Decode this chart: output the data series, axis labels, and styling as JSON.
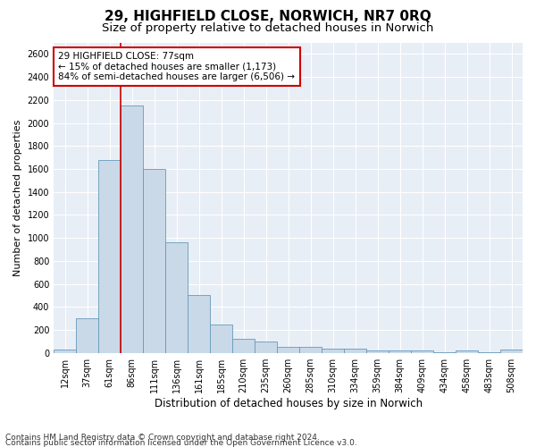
{
  "title1": "29, HIGHFIELD CLOSE, NORWICH, NR7 0RQ",
  "title2": "Size of property relative to detached houses in Norwich",
  "xlabel": "Distribution of detached houses by size in Norwich",
  "ylabel": "Number of detached properties",
  "categories": [
    "12sqm",
    "37sqm",
    "61sqm",
    "86sqm",
    "111sqm",
    "136sqm",
    "161sqm",
    "185sqm",
    "210sqm",
    "235sqm",
    "260sqm",
    "285sqm",
    "310sqm",
    "334sqm",
    "359sqm",
    "384sqm",
    "409sqm",
    "434sqm",
    "458sqm",
    "483sqm",
    "508sqm"
  ],
  "values": [
    25,
    300,
    1675,
    2150,
    1600,
    960,
    500,
    250,
    120,
    100,
    50,
    50,
    35,
    35,
    20,
    20,
    20,
    5,
    20,
    5,
    25
  ],
  "bar_color": "#c9d9e8",
  "bar_edgecolor": "#6699bb",
  "vline_color": "#cc0000",
  "vline_x_index": 2.5,
  "annotation_text": "29 HIGHFIELD CLOSE: 77sqm\n← 15% of detached houses are smaller (1,173)\n84% of semi-detached houses are larger (6,506) →",
  "annotation_box_color": "#ffffff",
  "annotation_box_edgecolor": "#cc0000",
  "ylim": [
    0,
    2700
  ],
  "yticks": [
    0,
    200,
    400,
    600,
    800,
    1000,
    1200,
    1400,
    1600,
    1800,
    2000,
    2200,
    2400,
    2600
  ],
  "footer1": "Contains HM Land Registry data © Crown copyright and database right 2024.",
  "footer2": "Contains public sector information licensed under the Open Government Licence v3.0.",
  "bg_color": "#ffffff",
  "plot_bg_color": "#e8eef5",
  "grid_color": "#ffffff",
  "title1_fontsize": 11,
  "title2_fontsize": 9.5,
  "xlabel_fontsize": 8.5,
  "ylabel_fontsize": 8,
  "tick_fontsize": 7,
  "annotation_fontsize": 7.5,
  "footer_fontsize": 6.5
}
